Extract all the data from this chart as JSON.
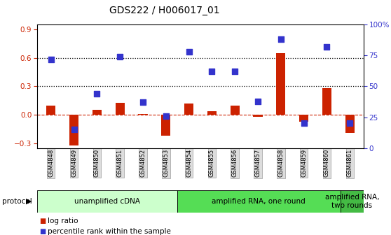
{
  "title": "GDS222 / H006017_01",
  "samples": [
    "GSM4848",
    "GSM4849",
    "GSM4850",
    "GSM4851",
    "GSM4852",
    "GSM4853",
    "GSM4854",
    "GSM4855",
    "GSM4856",
    "GSM4857",
    "GSM4858",
    "GSM4859",
    "GSM4860",
    "GSM4861"
  ],
  "log_ratio": [
    0.1,
    -0.32,
    0.05,
    0.13,
    0.01,
    -0.22,
    0.12,
    0.04,
    0.1,
    -0.02,
    0.65,
    -0.07,
    0.28,
    -0.19
  ],
  "percentile_pct": [
    72,
    15,
    44,
    74,
    37,
    26,
    78,
    62,
    62,
    38,
    88,
    20,
    82,
    20
  ],
  "ylim_left": [
    -0.35,
    0.95
  ],
  "ylim_right": [
    0,
    100
  ],
  "yticks_left": [
    -0.3,
    0.0,
    0.3,
    0.6,
    0.9
  ],
  "yticks_right": [
    0,
    25,
    50,
    75,
    100
  ],
  "hlines": [
    0.3,
    0.6
  ],
  "bar_color": "#cc2200",
  "dot_color": "#3333cc",
  "zero_line_color": "#cc2200",
  "protocol_groups": [
    {
      "label": "unamplified cDNA",
      "start": 0,
      "end": 5,
      "color": "#ccffcc"
    },
    {
      "label": "amplified RNA, one round",
      "start": 6,
      "end": 12,
      "color": "#55dd55"
    },
    {
      "label": "amplified RNA,\ntwo rounds",
      "start": 13,
      "end": 13,
      "color": "#44bb44"
    }
  ],
  "legend_items": [
    {
      "label": "log ratio",
      "color": "#cc2200"
    },
    {
      "label": "percentile rank within the sample",
      "color": "#3333cc"
    }
  ],
  "protocol_label": "protocol",
  "background_color": "#ffffff",
  "tick_bg_color": "#dddddd",
  "grid_color": "#aaaaaa"
}
